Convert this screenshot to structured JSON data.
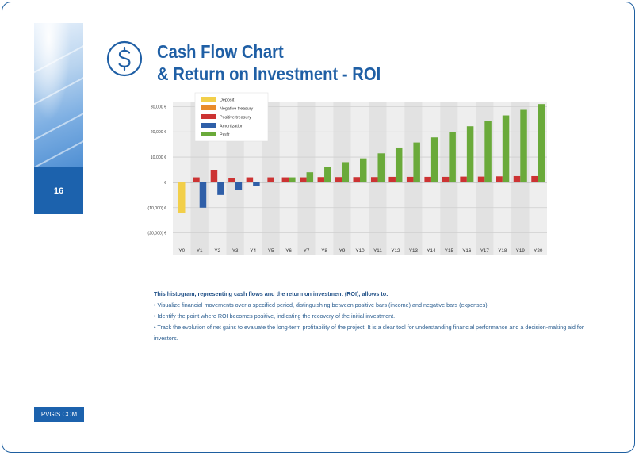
{
  "page": {
    "number": "16",
    "site": "PVGIS.COM",
    "title_line1": "Cash Flow Chart",
    "title_line2": "& Return on Investment - ROI",
    "title_icon": "dollar-circle-icon",
    "accent_color": "#1f5fa5"
  },
  "description": {
    "intro": "This histogram, representing cash flows and the return on investment (ROI), allows to:",
    "bullets": [
      "• Visualize financial movements over a specified period, distinguishing between positive bars (income) and negative bars (expenses).",
      "• Identify the point where ROI becomes positive, indicating the recovery of the initial investment.",
      "• Track the evolution of net gains to evaluate the long-term profitability of the project. It is a clear tool for understanding financial performance and a decision-making aid for investors."
    ]
  },
  "chart_data": {
    "type": "bar",
    "title": "",
    "xlabel": "",
    "ylabel": "",
    "ylim": [
      -22000,
      32000
    ],
    "yticks": [
      {
        "value": 30000,
        "label": "30,000 €"
      },
      {
        "value": 20000,
        "label": "20,000 €"
      },
      {
        "value": 10000,
        "label": "10,000 €"
      },
      {
        "value": 0,
        "label": "€"
      },
      {
        "value": -10000,
        "label": "(10,000) €"
      },
      {
        "value": -20000,
        "label": "(20,000) €"
      }
    ],
    "categories": [
      "Y0",
      "Y1",
      "Y2",
      "Y3",
      "Y4",
      "Y5",
      "Y6",
      "Y7",
      "Y8",
      "Y9",
      "Y10",
      "Y11",
      "Y12",
      "Y13",
      "Y14",
      "Y15",
      "Y16",
      "Y17",
      "Y18",
      "Y19",
      "Y20"
    ],
    "legend_position": "top-left",
    "series": [
      {
        "name": "Deposit",
        "color": "#f2cf4a",
        "values": [
          -12000,
          0,
          0,
          0,
          0,
          0,
          0,
          0,
          0,
          0,
          0,
          0,
          0,
          0,
          0,
          0,
          0,
          0,
          0,
          0,
          0
        ]
      },
      {
        "name": "Negative treasury",
        "color": "#e98b2a",
        "values": [
          0,
          0,
          0,
          0,
          0,
          0,
          0,
          0,
          0,
          0,
          0,
          0,
          0,
          0,
          0,
          0,
          0,
          0,
          0,
          0,
          0
        ]
      },
      {
        "name": "Positive treasury",
        "color": "#cc3333",
        "values": [
          0,
          2000,
          5000,
          1800,
          2000,
          2000,
          2000,
          2000,
          2100,
          2100,
          2100,
          2100,
          2200,
          2200,
          2200,
          2200,
          2300,
          2300,
          2400,
          2500,
          2500
        ]
      },
      {
        "name": "Amortization",
        "color": "#2f5fa8",
        "values": [
          0,
          -10000,
          -5000,
          -3000,
          -1500,
          0,
          0,
          0,
          0,
          0,
          0,
          0,
          0,
          0,
          0,
          0,
          0,
          0,
          0,
          0,
          0
        ]
      },
      {
        "name": "Profit",
        "color": "#6aaa3a",
        "values": [
          0,
          0,
          0,
          0,
          0,
          0,
          2000,
          4000,
          6000,
          8000,
          9500,
          11500,
          13800,
          15800,
          17800,
          20000,
          22200,
          24300,
          26500,
          28700,
          31000
        ]
      }
    ]
  }
}
